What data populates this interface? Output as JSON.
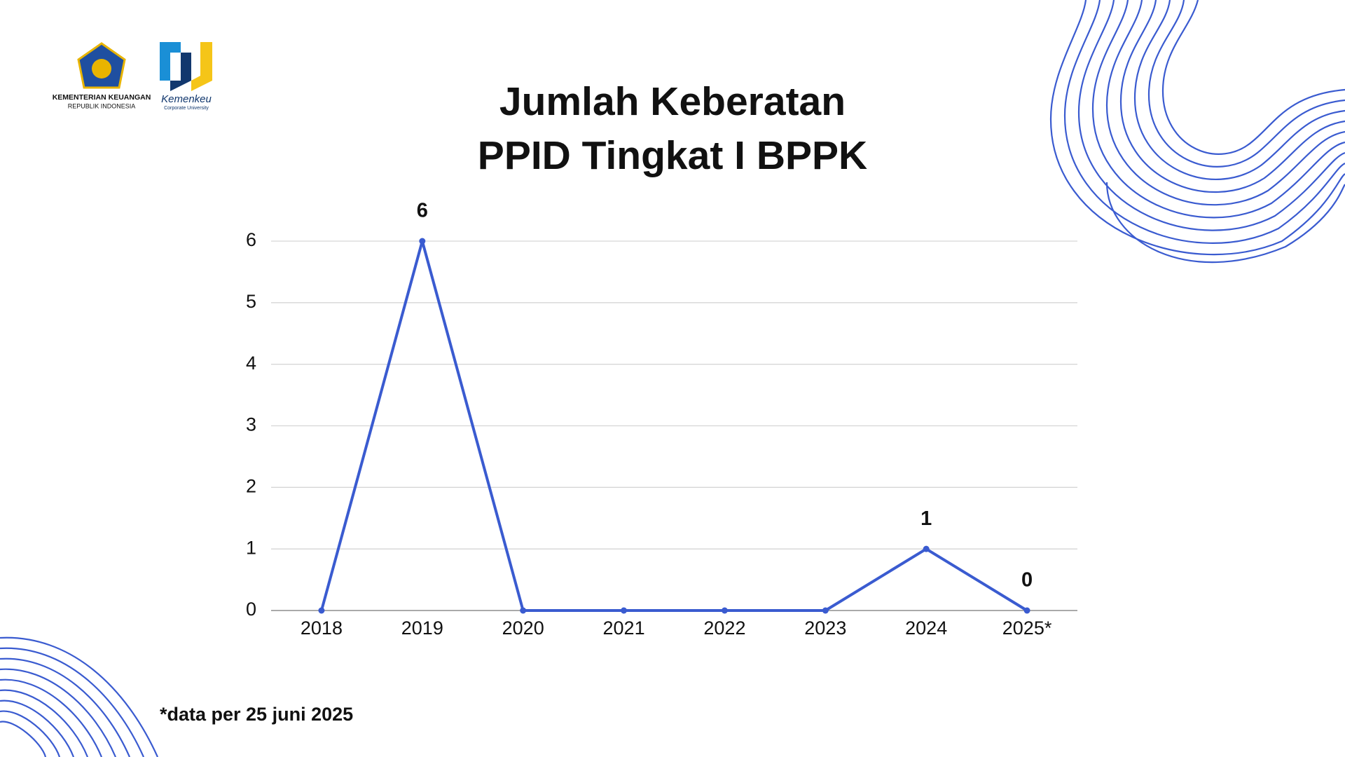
{
  "logos": {
    "ministry": "KEMENTERIAN KEUANGAN",
    "ministry_sub": "REPUBLIK INDONESIA",
    "university": "Kemenkeu",
    "university_sub": "Corporate University"
  },
  "chart_data": {
    "type": "line",
    "title": [
      "Jumlah Keberatan",
      "PPID Tingkat I BPPK"
    ],
    "categories": [
      "2018",
      "2019",
      "2020",
      "2021",
      "2022",
      "2023",
      "2024",
      "2025*"
    ],
    "series": [
      {
        "color": "#3a5bd0",
        "values": [
          0,
          6,
          0,
          0,
          0,
          0,
          1,
          0
        ],
        "value_labels": [
          null,
          "6",
          null,
          null,
          null,
          null,
          "1",
          "0"
        ]
      }
    ],
    "ylim": [
      0,
      6
    ],
    "yticks": [
      0,
      1,
      2,
      3,
      4,
      5,
      6
    ],
    "grid": true,
    "footnote": "*data per 25 juni 2025"
  }
}
